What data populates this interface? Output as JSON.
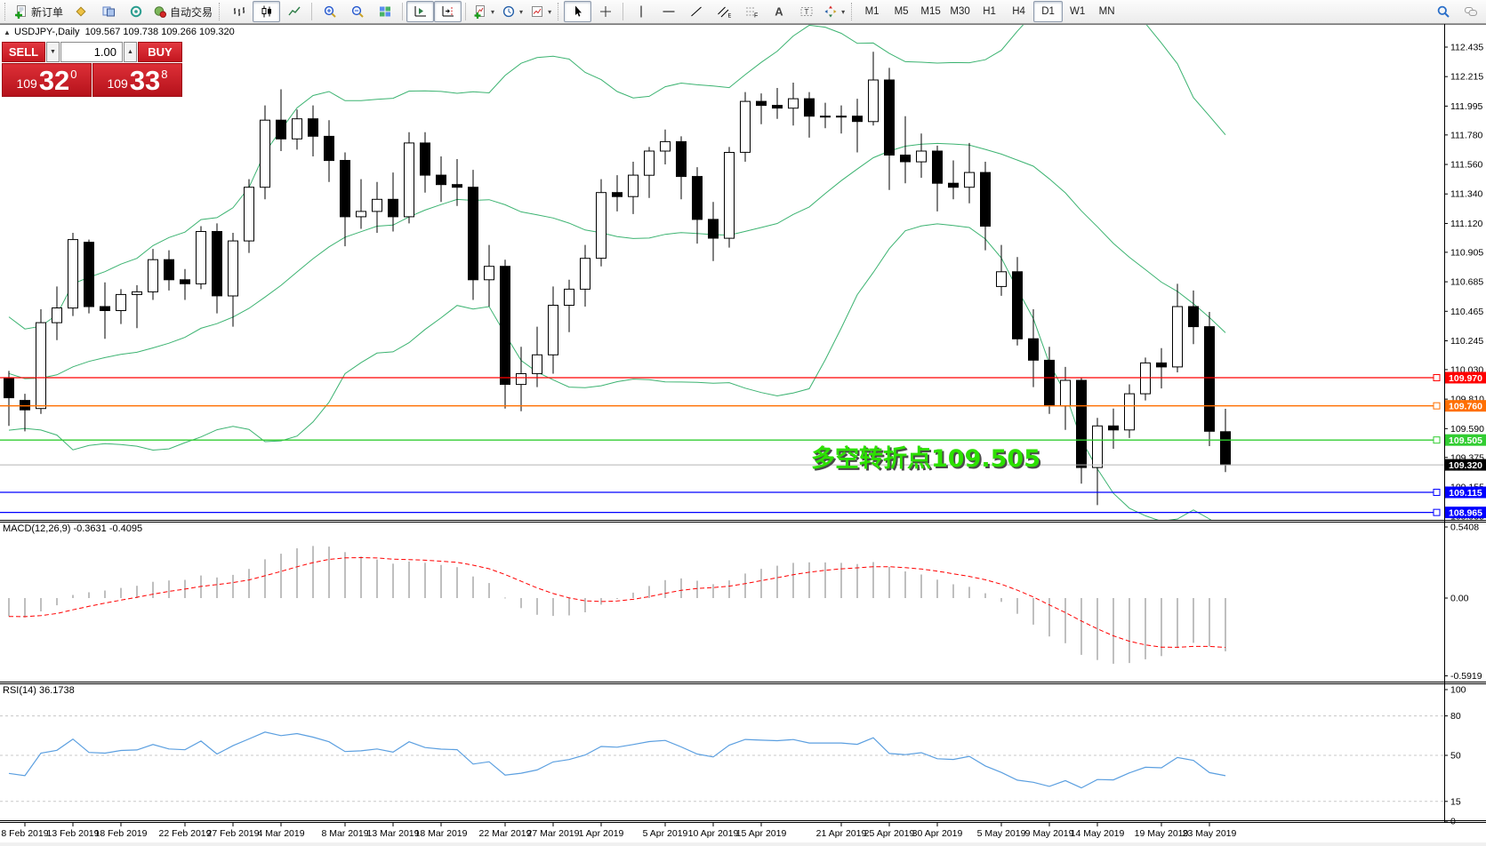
{
  "title": {
    "symbol_period": "USDJPY-,Daily",
    "ohlc": "109.567 109.738 109.266 109.320"
  },
  "one_click": {
    "sell_label": "SELL",
    "buy_label": "BUY",
    "volume": "1.00",
    "spin_down": "▼",
    "spin_up": "▲",
    "sell_price": {
      "prefix": "109",
      "big": "32",
      "sup": "0"
    },
    "buy_price": {
      "prefix": "109",
      "big": "33",
      "sup": "8"
    }
  },
  "indicators": {
    "macd_label": "MACD(12,26,9) -0.3631 -0.4095",
    "rsi_label": "RSI(14) 36.1738"
  },
  "annotation": {
    "text": "多空转折点109.505",
    "color": "#2ce000",
    "shadow": "#4a4a4a"
  },
  "toolbar": {
    "items": [
      {
        "type": "grip"
      },
      {
        "type": "btn",
        "icon": "new-order",
        "label": "新订单",
        "name": "new-order-button"
      },
      {
        "type": "btn",
        "icon": "gold-diamond",
        "name": "indicator-list-button"
      },
      {
        "type": "btn",
        "icon": "charts-blue",
        "name": "charts-button"
      },
      {
        "type": "btn",
        "icon": "signal-target",
        "name": "signals-button"
      },
      {
        "type": "btn",
        "icon": "autotrade",
        "label": "自动交易",
        "name": "autotrading-button"
      },
      {
        "type": "grip"
      },
      {
        "type": "btn",
        "icon": "bars-chart",
        "name": "bar-chart-button"
      },
      {
        "type": "btn",
        "icon": "candle-chart",
        "name": "candlestick-chart-button",
        "pressed": true
      },
      {
        "type": "btn",
        "icon": "line-chart",
        "name": "line-chart-button"
      },
      {
        "type": "sep"
      },
      {
        "type": "btn",
        "icon": "zoom-in",
        "name": "zoom-in-button"
      },
      {
        "type": "btn",
        "icon": "zoom-out",
        "name": "zoom-out-button"
      },
      {
        "type": "btn",
        "icon": "tile-windows",
        "name": "tile-windows-button"
      },
      {
        "type": "sep"
      },
      {
        "type": "btn",
        "icon": "auto-scroll",
        "name": "auto-scroll-button",
        "pressed": true
      },
      {
        "type": "btn",
        "icon": "chart-shift",
        "name": "chart-shift-button",
        "pressed": true
      },
      {
        "type": "sep"
      },
      {
        "type": "btn",
        "icon": "doc-plus",
        "name": "indicators-menu-button",
        "dropdown": true
      },
      {
        "type": "btn",
        "icon": "clock",
        "name": "periods-menu-button",
        "dropdown": true
      },
      {
        "type": "btn",
        "icon": "template",
        "name": "templates-menu-button",
        "dropdown": true
      },
      {
        "type": "grip"
      },
      {
        "type": "btn",
        "icon": "cursor",
        "name": "cursor-button",
        "pressed": true
      },
      {
        "type": "btn",
        "icon": "crosshair",
        "name": "crosshair-button"
      },
      {
        "type": "sep"
      },
      {
        "type": "btn",
        "icon": "vline",
        "name": "vertical-line-button"
      },
      {
        "type": "btn",
        "icon": "hline",
        "name": "horizontal-line-button"
      },
      {
        "type": "btn",
        "icon": "trendline",
        "name": "trendline-button"
      },
      {
        "type": "btn",
        "icon": "channel",
        "name": "equidistant-channel-button"
      },
      {
        "type": "btn",
        "icon": "fibo",
        "name": "fibonacci-button"
      },
      {
        "type": "btn",
        "icon": "text-a",
        "name": "text-button"
      },
      {
        "type": "btn",
        "icon": "label-t",
        "name": "text-label-button"
      },
      {
        "type": "btn",
        "icon": "arrows",
        "name": "arrows-button",
        "dropdown": true
      },
      {
        "type": "grip"
      },
      {
        "type": "tf",
        "label": "M1",
        "name": "timeframe-m1-button"
      },
      {
        "type": "tf",
        "label": "M5",
        "name": "timeframe-m5-button"
      },
      {
        "type": "tf",
        "label": "M15",
        "name": "timeframe-m15-button"
      },
      {
        "type": "tf",
        "label": "M30",
        "name": "timeframe-m30-button"
      },
      {
        "type": "tf",
        "label": "H1",
        "name": "timeframe-h1-button"
      },
      {
        "type": "tf",
        "label": "H4",
        "name": "timeframe-h4-button"
      },
      {
        "type": "tf",
        "label": "D1",
        "name": "timeframe-d1-button",
        "pressed": true
      },
      {
        "type": "tf",
        "label": "W1",
        "name": "timeframe-w1-button"
      },
      {
        "type": "tf",
        "label": "MN",
        "name": "timeframe-mn-button"
      },
      {
        "type": "spacer"
      },
      {
        "type": "btn",
        "icon": "search",
        "name": "search-button"
      },
      {
        "type": "btn",
        "icon": "chat",
        "name": "community-chat-button"
      }
    ]
  },
  "chart_data": {
    "type": "candlestick",
    "symbol": "USDJPY-",
    "period": "Daily",
    "ohlc_display": [
      "109.567",
      "109.738",
      "109.266",
      "109.320"
    ],
    "candles": [
      [
        109.97,
        110.02,
        109.61,
        109.82
      ],
      [
        109.8,
        109.85,
        109.57,
        109.73
      ],
      [
        109.74,
        110.48,
        109.7,
        110.38
      ],
      [
        110.38,
        110.65,
        110.25,
        110.49
      ],
      [
        110.49,
        111.05,
        110.43,
        111.0
      ],
      [
        110.98,
        111.0,
        110.45,
        110.5
      ],
      [
        110.5,
        110.68,
        110.26,
        110.47
      ],
      [
        110.47,
        110.63,
        110.37,
        110.59
      ],
      [
        110.59,
        110.66,
        110.34,
        110.61
      ],
      [
        110.61,
        110.93,
        110.55,
        110.85
      ],
      [
        110.85,
        110.92,
        110.62,
        110.7
      ],
      [
        110.7,
        110.78,
        110.55,
        110.67
      ],
      [
        110.67,
        111.1,
        110.63,
        111.06
      ],
      [
        111.06,
        111.12,
        110.45,
        110.58
      ],
      [
        110.58,
        111.05,
        110.35,
        110.99
      ],
      [
        110.99,
        111.45,
        110.9,
        111.39
      ],
      [
        111.39,
        112.0,
        111.3,
        111.89
      ],
      [
        111.89,
        112.12,
        111.66,
        111.75
      ],
      [
        111.75,
        111.97,
        111.67,
        111.9
      ],
      [
        111.9,
        112.0,
        111.62,
        111.77
      ],
      [
        111.77,
        111.89,
        111.43,
        111.59
      ],
      [
        111.59,
        111.65,
        110.95,
        111.17
      ],
      [
        111.17,
        111.45,
        111.08,
        111.21
      ],
      [
        111.21,
        111.43,
        111.05,
        111.3
      ],
      [
        111.3,
        111.5,
        111.06,
        111.17
      ],
      [
        111.17,
        111.8,
        111.12,
        111.72
      ],
      [
        111.72,
        111.8,
        111.35,
        111.48
      ],
      [
        111.48,
        111.62,
        111.28,
        111.41
      ],
      [
        111.41,
        111.6,
        111.25,
        111.39
      ],
      [
        111.39,
        111.52,
        110.55,
        110.7
      ],
      [
        110.7,
        110.96,
        110.5,
        110.8
      ],
      [
        110.8,
        110.85,
        109.74,
        109.92
      ],
      [
        109.92,
        110.2,
        109.72,
        110.0
      ],
      [
        110.0,
        110.35,
        109.9,
        110.14
      ],
      [
        110.14,
        110.65,
        110.0,
        110.51
      ],
      [
        110.51,
        110.7,
        110.31,
        110.63
      ],
      [
        110.63,
        110.96,
        110.5,
        110.86
      ],
      [
        110.86,
        111.45,
        110.8,
        111.35
      ],
      [
        111.35,
        111.48,
        111.21,
        111.32
      ],
      [
        111.32,
        111.58,
        111.19,
        111.48
      ],
      [
        111.48,
        111.69,
        111.31,
        111.66
      ],
      [
        111.66,
        111.82,
        111.56,
        111.73
      ],
      [
        111.73,
        111.77,
        111.3,
        111.47
      ],
      [
        111.47,
        111.54,
        110.97,
        111.15
      ],
      [
        111.15,
        111.28,
        110.84,
        111.01
      ],
      [
        111.01,
        111.69,
        110.94,
        111.65
      ],
      [
        111.65,
        112.1,
        111.58,
        112.03
      ],
      [
        112.03,
        112.09,
        111.86,
        112.0
      ],
      [
        112.0,
        112.13,
        111.9,
        111.98
      ],
      [
        111.98,
        112.17,
        111.85,
        112.05
      ],
      [
        112.05,
        112.1,
        111.76,
        111.92
      ],
      [
        111.92,
        112.02,
        111.83,
        111.92
      ],
      [
        111.92,
        112.0,
        111.79,
        111.92
      ],
      [
        111.92,
        112.05,
        111.65,
        111.88
      ],
      [
        111.88,
        112.4,
        111.85,
        112.19
      ],
      [
        112.19,
        112.28,
        111.37,
        111.63
      ],
      [
        111.63,
        111.92,
        111.42,
        111.58
      ],
      [
        111.58,
        111.79,
        111.46,
        111.66
      ],
      [
        111.66,
        111.7,
        111.21,
        111.42
      ],
      [
        111.42,
        111.59,
        111.3,
        111.39
      ],
      [
        111.39,
        111.72,
        111.27,
        111.5
      ],
      [
        111.5,
        111.58,
        110.92,
        111.1
      ],
      [
        110.65,
        110.96,
        110.58,
        110.76
      ],
      [
        110.76,
        110.87,
        110.21,
        110.26
      ],
      [
        110.26,
        110.48,
        109.9,
        110.1
      ],
      [
        110.1,
        110.2,
        109.7,
        109.76
      ],
      [
        109.76,
        110.05,
        109.58,
        109.95
      ],
      [
        109.95,
        109.97,
        109.18,
        109.3
      ],
      [
        109.3,
        109.67,
        109.02,
        109.61
      ],
      [
        109.61,
        109.74,
        109.44,
        109.58
      ],
      [
        109.58,
        109.92,
        109.52,
        109.85
      ],
      [
        109.85,
        110.12,
        109.8,
        110.08
      ],
      [
        110.08,
        110.19,
        109.89,
        110.05
      ],
      [
        110.05,
        110.67,
        110.01,
        110.5
      ],
      [
        110.5,
        110.62,
        110.22,
        110.35
      ],
      [
        110.35,
        110.46,
        109.46,
        109.57
      ],
      [
        109.567,
        109.738,
        109.266,
        109.32
      ]
    ],
    "warmup_closes": [
      110.6,
      110.5,
      110.3,
      110.0,
      109.8,
      109.7,
      109.9,
      110.1,
      110.3,
      110.2,
      110.0,
      109.8,
      109.7,
      109.9,
      110.0,
      110.1,
      110.2,
      110.0,
      109.9,
      109.8
    ],
    "price_ticks": [
      112.435,
      112.215,
      111.995,
      111.78,
      111.56,
      111.34,
      111.12,
      110.905,
      110.685,
      110.465,
      110.245,
      110.03,
      109.81,
      109.59,
      109.375,
      109.155,
      108.935
    ],
    "hlines": [
      {
        "price": 109.97,
        "color": "#ff0000",
        "label": "109.970"
      },
      {
        "price": 109.76,
        "color": "#ff6f00",
        "label": "109.760"
      },
      {
        "price": 109.505,
        "color": "#32cd32",
        "label": "109.505"
      },
      {
        "price": 109.115,
        "color": "#0000ff",
        "label": "109.115"
      },
      {
        "price": 108.965,
        "color": "#0000ff",
        "label": "108.965"
      }
    ],
    "bid_line": {
      "price": 109.32,
      "label": "109.320",
      "line_color": "#b4b4b4",
      "label_bg": "#000000"
    },
    "bollinger": {
      "period": 20,
      "deviation": 2,
      "color": "#3cb371"
    },
    "macd": {
      "params": [
        12,
        26,
        9
      ],
      "value": -0.3631,
      "signal": -0.4095,
      "scale_labels": [
        0.5408,
        0.0,
        -0.5919
      ],
      "bar_color": "#bfbfbf",
      "signal_color": "#ff0000"
    },
    "rsi": {
      "period": 14,
      "value": 36.1738,
      "scale_labels": [
        100,
        80,
        50,
        15,
        0
      ],
      "levels": [
        80,
        50,
        15
      ],
      "color": "#5b9fe0"
    },
    "date_labels": [
      [
        "8 Feb 2019",
        1
      ],
      [
        "13 Feb 2019",
        4
      ],
      [
        "18 Feb 2019",
        7
      ],
      [
        "22 Feb 2019",
        11
      ],
      [
        "27 Feb 2019",
        14
      ],
      [
        "4 Mar 2019",
        17
      ],
      [
        "8 Mar 2019",
        21
      ],
      [
        "13 Mar 2019",
        24
      ],
      [
        "18 Mar 2019",
        27
      ],
      [
        "22 Mar 2019",
        31
      ],
      [
        "27 Mar 2019",
        34
      ],
      [
        "1 Apr 2019",
        37
      ],
      [
        "5 Apr 2019",
        41
      ],
      [
        "10 Apr 2019",
        44
      ],
      [
        "15 Apr 2019",
        47
      ],
      [
        "21 Apr 2019",
        52
      ],
      [
        "25 Apr 2019",
        55
      ],
      [
        "30 Apr 2019",
        58
      ],
      [
        "5 May 2019",
        62
      ],
      [
        "9 May 2019",
        65
      ],
      [
        "14 May 2019",
        68
      ],
      [
        "19 May 2019",
        72
      ],
      [
        "23 May 2019",
        75
      ]
    ]
  }
}
